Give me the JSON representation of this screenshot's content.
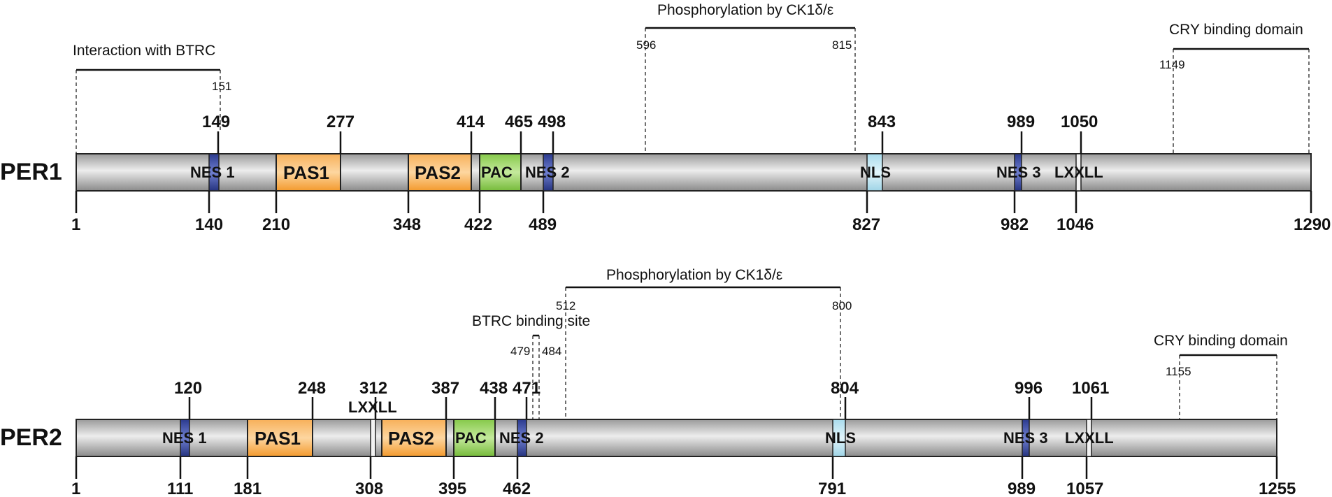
{
  "proteins": [
    {
      "name": "PER1",
      "length_label": "1290",
      "start_label": "1",
      "domains": [
        {
          "type": "nes",
          "label": "NES 1"
        },
        {
          "type": "pas",
          "label": "PAS1"
        },
        {
          "type": "pas",
          "label": "PAS2"
        },
        {
          "type": "pac",
          "label": "PAC"
        },
        {
          "type": "nes",
          "label": "NES 2"
        },
        {
          "type": "nls",
          "label": "NLS"
        },
        {
          "type": "nes",
          "label": "NES 3"
        },
        {
          "type": "lxxll",
          "label": "LXXLL"
        }
      ],
      "top_numbers": [
        "149",
        "277",
        "414",
        "465",
        "498",
        "843",
        "989",
        "1050"
      ],
      "bottom_numbers": [
        "1",
        "140",
        "210",
        "348",
        "422",
        "489",
        "827",
        "982",
        "1046",
        "1290"
      ],
      "annotations": [
        {
          "label": "Interaction with BTRC",
          "start": "",
          "end": "151"
        },
        {
          "label": "Phosphorylation by CK1δ/ε",
          "start": "596",
          "end": "815"
        },
        {
          "label": "CRY binding domain",
          "start": "1149",
          "end": ""
        }
      ]
    },
    {
      "name": "PER2",
      "length_label": "1255",
      "start_label": "1",
      "domains": [
        {
          "type": "nes",
          "label": "NES 1"
        },
        {
          "type": "pas",
          "label": "PAS1"
        },
        {
          "type": "lxxll",
          "label": "LXXLL"
        },
        {
          "type": "pas",
          "label": "PAS2"
        },
        {
          "type": "pac",
          "label": "PAC"
        },
        {
          "type": "nes",
          "label": "NES 2"
        },
        {
          "type": "nls",
          "label": "NLS"
        },
        {
          "type": "nes",
          "label": "NES 3"
        },
        {
          "type": "lxxll",
          "label": "LXXLL"
        }
      ],
      "top_numbers": [
        "120",
        "248",
        "312",
        "387",
        "438",
        "471",
        "804",
        "996",
        "1061"
      ],
      "bottom_numbers": [
        "1",
        "111",
        "181",
        "308",
        "395",
        "462",
        "791",
        "989",
        "1057",
        "1255"
      ],
      "annotations": [
        {
          "label": "Phosphorylation by CK1δ/ε",
          "start": "512",
          "end": "800"
        },
        {
          "label": "BTRC binding site",
          "start": "479",
          "end": "484"
        },
        {
          "label": "CRY binding domain",
          "start": "1155",
          "end": ""
        }
      ]
    }
  ],
  "colors": {
    "pas": "#f9a94b",
    "pac": "#8fcf52",
    "nes": "#2e3e96",
    "nls": "#bfe6f2",
    "bar_dark": "#8c8c8c",
    "bar_light": "#e6e6e6"
  }
}
